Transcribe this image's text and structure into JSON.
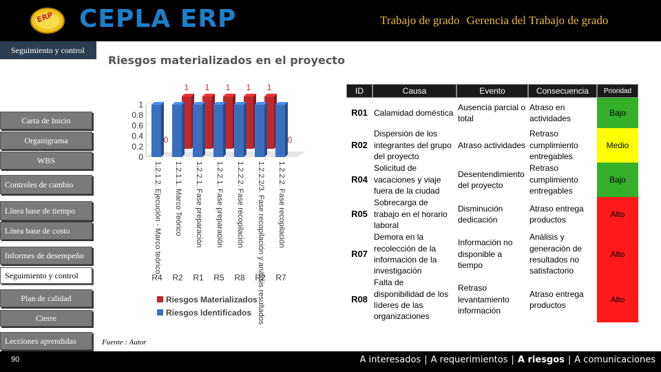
{
  "header": {
    "app_title": "CEPLA ERP",
    "logo_text": "ERP",
    "subtitle_left": "Trabajo de grado",
    "subtitle_right": "Gerencia del Trabajo de grado"
  },
  "current_section": "Seguimiento y control",
  "sidebar": {
    "items": [
      {
        "label": "Carta de Inicio",
        "active": false
      },
      {
        "label": "Organigrama",
        "active": false
      },
      {
        "label": "WBS",
        "active": false
      },
      {
        "label": "Controles de cambio",
        "active": false
      },
      {
        "label": "Línea base de tiempo",
        "active": false
      },
      {
        "label": "Línea base de costo",
        "active": false
      },
      {
        "label": "Informes de desempeño",
        "active": false
      },
      {
        "label": "Seguimiento y control",
        "active": true
      },
      {
        "label": "Plan de calidad",
        "active": false
      },
      {
        "label": "Cierre",
        "active": false
      },
      {
        "label": "Lecciones aprendidas",
        "active": false
      }
    ]
  },
  "page_number": "90",
  "chart_title": "Riesgos materializados en el proyecto",
  "chart_data": {
    "type": "bar",
    "title": "Riesgos materializados en el proyecto",
    "categories": [
      "R4",
      "R2",
      "R1",
      "R5",
      "R8",
      "R2",
      "R7"
    ],
    "group_labels": [
      "1.2.1.2. Ejecución - Marco teórico",
      "1.2.1.1. Marco Teórico",
      "1.2.2.1. Fase preparación",
      "1.2.2.1. Fase preparación",
      "1.2.2.2. Fase recopilación",
      "1.2.2.2/3. Fase recopilación y análisis resultados",
      "1.2.2.2. Fase recopilación"
    ],
    "series": [
      {
        "name": "Riesgos Materializados",
        "color": "#c0282e",
        "values": [
          0,
          1,
          1,
          1,
          1,
          1,
          0
        ]
      },
      {
        "name": "Riesgos Identificados",
        "color": "#3a6fbf",
        "values": [
          1,
          1,
          1,
          1,
          1,
          1,
          1
        ]
      }
    ],
    "y_ticks": [
      "0",
      "0.2",
      "0.4",
      "0.6",
      "0.8",
      "1"
    ],
    "ylim": [
      0,
      1
    ],
    "legend": "bottom"
  },
  "source_note": "Fuente : Autor",
  "table": {
    "headers": [
      "ID",
      "Causa",
      "Evento",
      "Consecuencia",
      "Prioridad"
    ],
    "rows": [
      {
        "id": "R01",
        "causa": "Calamidad doméstica",
        "evento": "Ausencia parcial o total",
        "consecuencia": "Atraso en actividades",
        "prioridad": "Bajo",
        "color": "#35b02a"
      },
      {
        "id": "R02",
        "causa": "Dispersión de los integrantes del grupo del proyecto",
        "evento": "Atraso actividades",
        "consecuencia": "Retraso cumplimiento entregables",
        "prioridad": "Medio",
        "color": "#ffff00"
      },
      {
        "id": "R04",
        "causa": "Solicitud de vacaciones y viaje fuera de la ciudad",
        "evento": "Desentendimiento del proyecto",
        "consecuencia": "Retraso cumplimiento entregables",
        "prioridad": "Bajo",
        "color": "#35b02a"
      },
      {
        "id": "R05",
        "causa": "Sobrecarga de trabajo en el horario laboral",
        "evento": "Disminución dedicación",
        "consecuencia": "Atraso entrega productos",
        "prioridad": "Alto",
        "color": "#ff1a1a"
      },
      {
        "id": "R07",
        "causa": "Demora en la recolección de la información de la investigación",
        "evento": "Información no disponible a tiempo",
        "consecuencia": "Análisis y generación de resultados no satisfactorio",
        "prioridad": "Alto",
        "color": "#ff1a1a"
      },
      {
        "id": "R08",
        "causa": "Falta de disponibilidad de los líderes de las organizaciones",
        "evento": "Retraso levantamiento información",
        "consecuencia": "Atraso entrega productos",
        "prioridad": "Alto",
        "color": "#ff1a1a"
      }
    ]
  },
  "footer_nav": {
    "items": [
      "A interesados",
      "A requerimientos",
      "A riesgos",
      "A comunicaciones"
    ],
    "active": "A riesgos",
    "separator": "|"
  }
}
